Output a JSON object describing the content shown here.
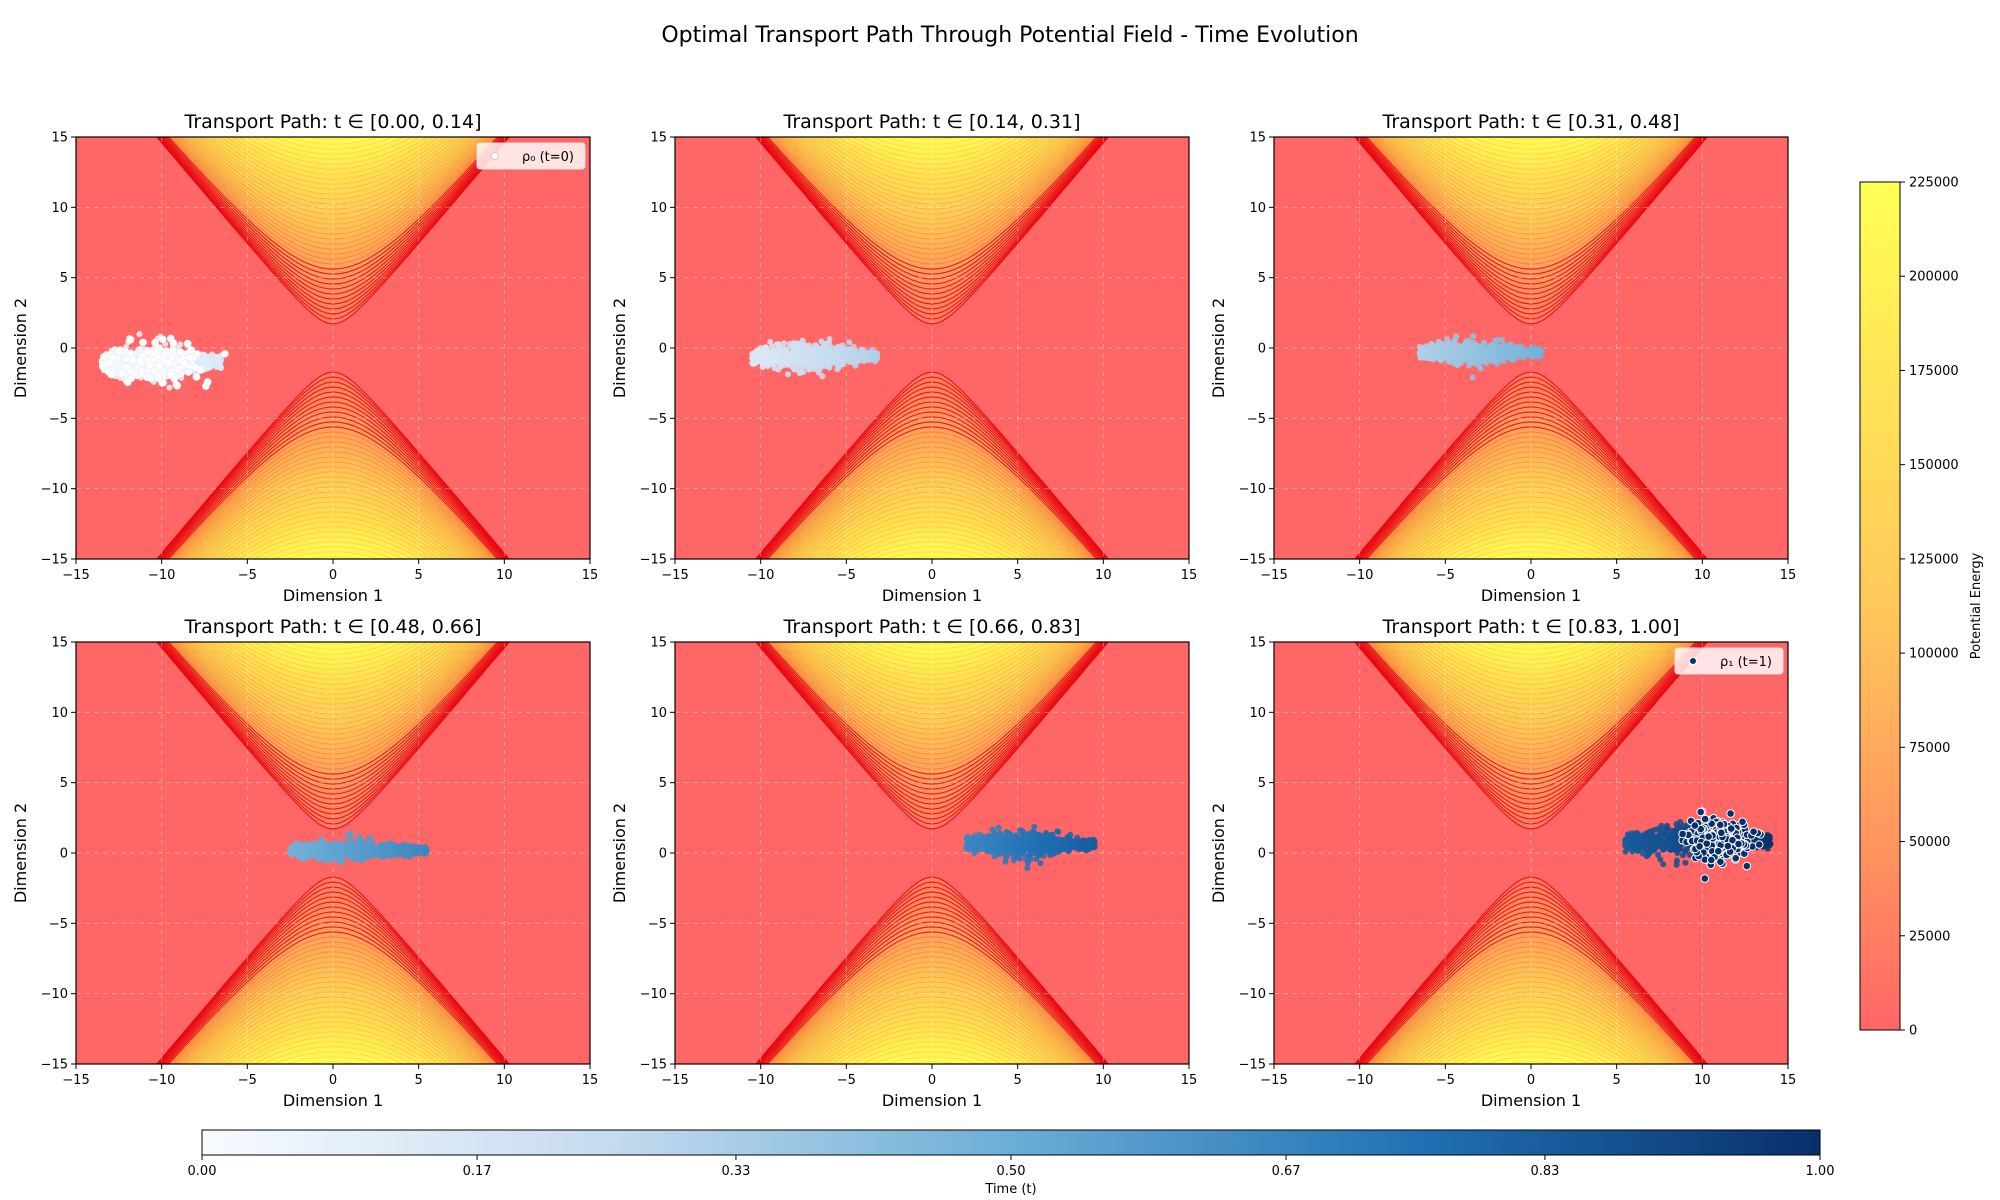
{
  "figure": {
    "suptitle": "Optimal Transport Path Through Potential Field - Time Evolution"
  },
  "colors": {
    "field_base": "#ff6666",
    "contour_line": "#e8000b",
    "field_peak": "#ffff44",
    "axis_text": "#000000",
    "grid": "#ffffff",
    "time_cmap": [
      "#f7fbff",
      "#c6dbef",
      "#6baed6",
      "#2171b5",
      "#08306b"
    ],
    "energy_cmap": [
      "#ff6666",
      "#ff9b5e",
      "#ffc85a",
      "#ffe257",
      "#ffff55"
    ]
  },
  "chart_data": {
    "type": "scatter",
    "panels": [
      {
        "title": "Transport Path: t ∈ [0.00, 0.14]",
        "t_range": [
          0.0,
          0.14
        ],
        "cloud": {
          "x_range": [
            -13.5,
            -6.5
          ],
          "y_center": -1.0,
          "y_spread": 1.4
        },
        "legend": "ρ₀ (t=0)"
      },
      {
        "title": "Transport Path: t ∈ [0.14, 0.31]",
        "t_range": [
          0.14,
          0.31
        ],
        "cloud": {
          "x_range": [
            -10.5,
            -3.2
          ],
          "y_center": -0.6,
          "y_spread": 1.1
        }
      },
      {
        "title": "Transport Path: t ∈ [0.31, 0.48]",
        "t_range": [
          0.31,
          0.48
        ],
        "cloud": {
          "x_range": [
            -6.5,
            0.6
          ],
          "y_center": -0.3,
          "y_spread": 0.9
        }
      },
      {
        "title": "Transport Path: t ∈ [0.48, 0.66]",
        "t_range": [
          0.48,
          0.66
        ],
        "cloud": {
          "x_range": [
            -2.5,
            5.5
          ],
          "y_center": 0.2,
          "y_spread": 0.8
        }
      },
      {
        "title": "Transport Path: t ∈ [0.66, 0.83]",
        "t_range": [
          0.66,
          0.83
        ],
        "cloud": {
          "x_range": [
            2.0,
            9.5
          ],
          "y_center": 0.6,
          "y_spread": 1.1
        }
      },
      {
        "title": "Transport Path: t ∈ [0.83, 1.00]",
        "t_range": [
          0.83,
          1.0
        ],
        "cloud": {
          "x_range": [
            5.5,
            14.0
          ],
          "y_center": 0.8,
          "y_spread": 1.3
        },
        "legend": "ρ₁ (t=1)"
      }
    ],
    "xlabel": "Dimension 1",
    "ylabel": "Dimension 2",
    "xlim": [
      -15,
      15
    ],
    "ylim": [
      -15,
      15
    ],
    "xticks": [
      "−15",
      "−10",
      "−5",
      "0",
      "5",
      "10",
      "15"
    ],
    "yticks": [
      "15",
      "10",
      "5",
      "0",
      "−5",
      "−10",
      "−15"
    ],
    "grid": true,
    "legend_position": "top-right",
    "potential": {
      "label": "Potential Energy",
      "ticks": [
        "225000",
        "200000",
        "175000",
        "150000",
        "125000",
        "100000",
        "75000",
        "50000",
        "25000",
        "0"
      ],
      "range": [
        0,
        225000
      ]
    },
    "time_colorbar": {
      "label": "Time (t)",
      "ticks": [
        "0.00",
        "0.17",
        "0.33",
        "0.50",
        "0.67",
        "0.83",
        "1.00"
      ]
    }
  }
}
